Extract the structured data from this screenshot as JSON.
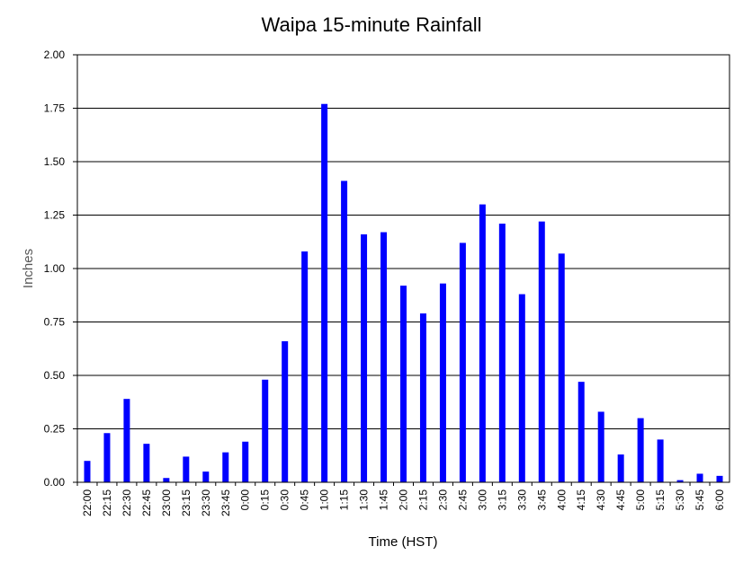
{
  "chart_data": {
    "type": "bar",
    "title": "Waipa 15-minute Rainfall",
    "xlabel": "Time (HST)",
    "ylabel": "Inches",
    "ylim": [
      0,
      2.0
    ],
    "yticks": [
      "0.00",
      "0.25",
      "0.50",
      "0.75",
      "1.00",
      "1.25",
      "1.50",
      "1.75",
      "2.00"
    ],
    "grid": true,
    "bar_color": "#0000ff",
    "categories": [
      "22:00",
      "22:15",
      "22:30",
      "22:45",
      "23:00",
      "23:15",
      "23:30",
      "23:45",
      "0:00",
      "0:15",
      "0:30",
      "0:45",
      "1:00",
      "1:15",
      "1:30",
      "1:45",
      "2:00",
      "2:15",
      "2:30",
      "2:45",
      "3:00",
      "3:15",
      "3:30",
      "3:45",
      "4:00",
      "4:15",
      "4:30",
      "4:45",
      "5:00",
      "5:15",
      "5:30",
      "5:45",
      "6:00"
    ],
    "values": [
      0.1,
      0.23,
      0.39,
      0.18,
      0.02,
      0.12,
      0.05,
      0.14,
      0.19,
      0.48,
      0.66,
      1.08,
      1.77,
      1.41,
      1.16,
      1.17,
      0.92,
      0.79,
      0.93,
      1.12,
      1.3,
      1.21,
      0.88,
      1.22,
      1.07,
      0.47,
      0.33,
      0.13,
      0.3,
      0.2,
      0.01,
      0.04,
      0.03
    ]
  }
}
